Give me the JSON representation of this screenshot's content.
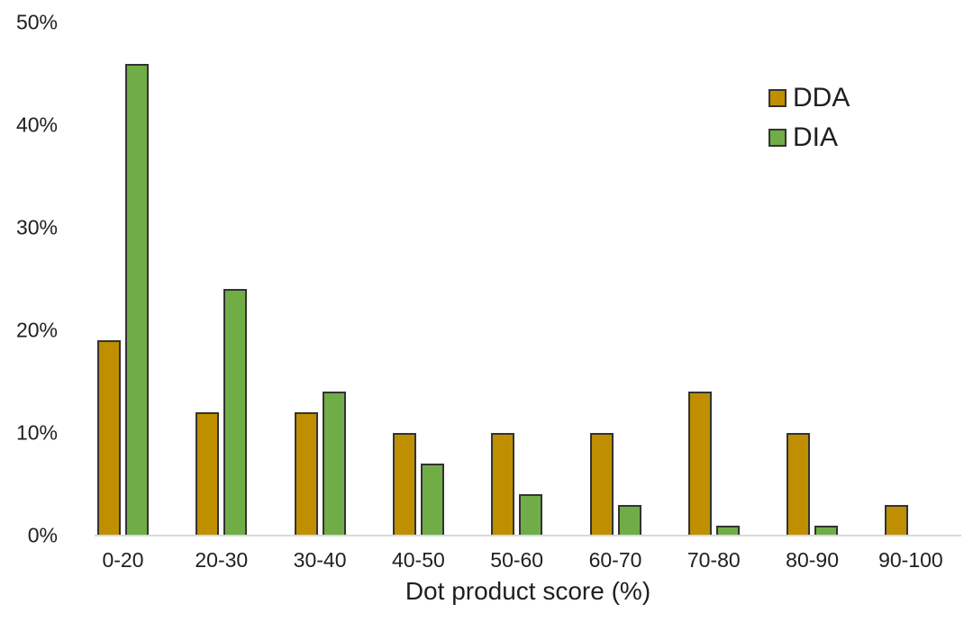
{
  "chart_data": {
    "type": "bar",
    "title": "",
    "xlabel": "Dot product score (%)",
    "ylabel": "",
    "categories": [
      "0-20",
      "20-30",
      "30-40",
      "40-50",
      "50-60",
      "60-70",
      "70-80",
      "80-90",
      "90-100"
    ],
    "series": [
      {
        "name": "DDA",
        "color": "#BF8F00",
        "values": [
          19,
          12,
          12,
          10,
          10,
          10,
          14,
          10,
          3
        ]
      },
      {
        "name": "DIA",
        "color": "#70AD47",
        "values": [
          46,
          24,
          14,
          7,
          4,
          3,
          1,
          1,
          0
        ]
      }
    ],
    "ylim": [
      0,
      50
    ],
    "yticks": [
      "0%",
      "10%",
      "20%",
      "30%",
      "40%",
      "50%"
    ],
    "grid": false,
    "legend_position": "top-right",
    "bar_outline_color": "#333333",
    "axis_line_color": "#D9D9D9"
  }
}
